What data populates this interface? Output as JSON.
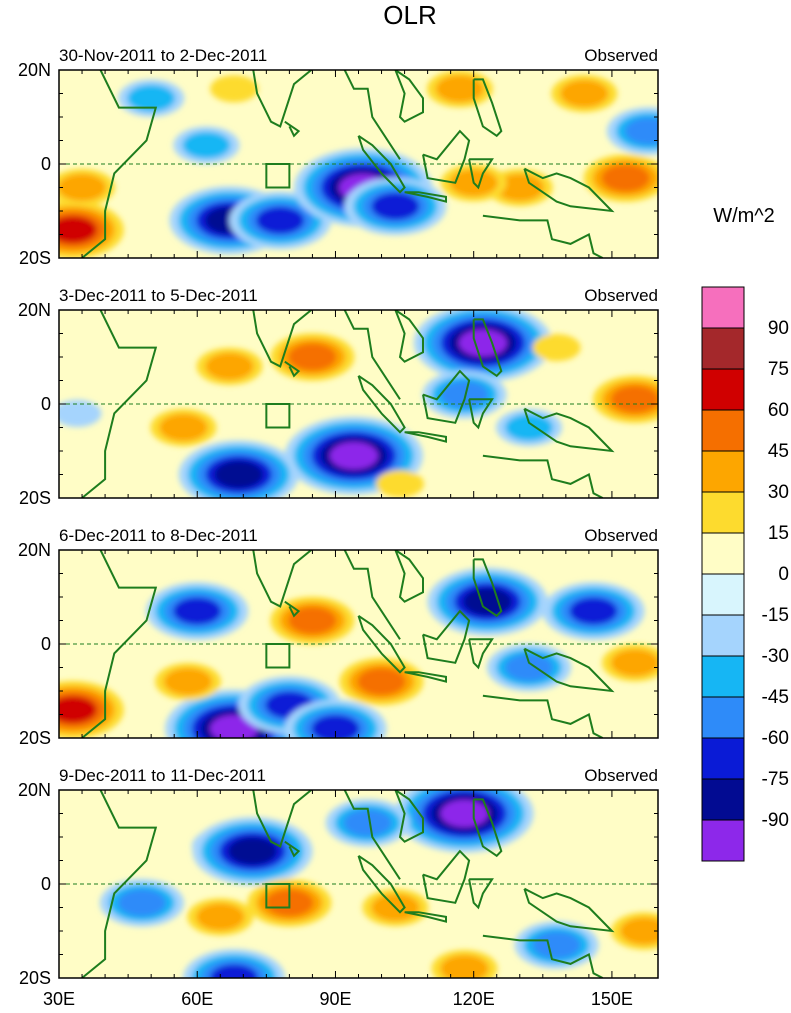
{
  "title": "OLR",
  "chart_data": {
    "type": "heatmap",
    "title": "OLR",
    "units": "W/m^2",
    "x_ticks": [
      "30E",
      "60E",
      "90E",
      "120E",
      "150E"
    ],
    "x_tick_values": [
      30,
      60,
      90,
      120,
      150
    ],
    "xlim": [
      30,
      160
    ],
    "ylim": [
      -20,
      20
    ],
    "y_ticks": [
      "20N",
      "0",
      "20S"
    ],
    "y_tick_values": [
      20,
      0,
      -20
    ],
    "colorbar": {
      "labels": [
        "90",
        "75",
        "60",
        "45",
        "30",
        "15",
        "0",
        "-15",
        "-30",
        "-45",
        "-60",
        "-75",
        "-90"
      ],
      "colors": [
        "#f66fbd",
        "#a4282b",
        "#d00000",
        "#f56f00",
        "#fda600",
        "#fddb2e",
        "#fffdc6",
        "#d8f5fd",
        "#a5d4fd",
        "#16b6f4",
        "#2e8bf9",
        "#0a1bd6",
        "#020b92",
        "#8d28ea"
      ]
    },
    "box_region": {
      "lon": [
        75,
        80
      ],
      "lat": [
        -5,
        0
      ]
    },
    "panels": [
      {
        "period": "30-Nov-2011 to 2-Dec-2011",
        "label": "Observed",
        "features": [
          {
            "lon": 67,
            "lat": -12,
            "value": -75
          },
          {
            "lon": 78,
            "lat": -12,
            "value": -60
          },
          {
            "lon": 96,
            "lat": -5,
            "value": -90
          },
          {
            "lon": 103,
            "lat": -9,
            "value": -60
          },
          {
            "lon": 50,
            "lat": 14,
            "value": -30
          },
          {
            "lon": 62,
            "lat": 4,
            "value": -30
          },
          {
            "lon": 158,
            "lat": 7,
            "value": -45
          },
          {
            "lon": 130,
            "lat": -5,
            "value": 30
          },
          {
            "lon": 120,
            "lat": -4,
            "value": 30
          },
          {
            "lon": 153,
            "lat": -3,
            "value": 45
          },
          {
            "lon": 33,
            "lat": -14,
            "value": 60
          },
          {
            "lon": 35,
            "lat": -5,
            "value": 30
          },
          {
            "lon": 144,
            "lat": 15,
            "value": 30
          },
          {
            "lon": 117,
            "lat": 16,
            "value": 30
          },
          {
            "lon": 68,
            "lat": 16,
            "value": 15
          }
        ]
      },
      {
        "period": "3-Dec-2011 to 5-Dec-2011",
        "label": "Observed",
        "features": [
          {
            "lon": 122,
            "lat": 13,
            "value": -90
          },
          {
            "lon": 118,
            "lat": 2,
            "value": -45
          },
          {
            "lon": 132,
            "lat": -5,
            "value": -30
          },
          {
            "lon": 94,
            "lat": -11,
            "value": -90
          },
          {
            "lon": 69,
            "lat": -15,
            "value": -75
          },
          {
            "lon": 85,
            "lat": 10,
            "value": 45
          },
          {
            "lon": 67,
            "lat": 8,
            "value": 30
          },
          {
            "lon": 138,
            "lat": 12,
            "value": 15
          },
          {
            "lon": 155,
            "lat": 1,
            "value": 45
          },
          {
            "lon": 57,
            "lat": -5,
            "value": 30
          },
          {
            "lon": 34,
            "lat": -2,
            "value": -15
          },
          {
            "lon": 104,
            "lat": -17,
            "value": 15
          }
        ]
      },
      {
        "period": "6-Dec-2011 to 8-Dec-2011",
        "label": "Observed",
        "features": [
          {
            "lon": 123,
            "lat": 9,
            "value": -75
          },
          {
            "lon": 146,
            "lat": 7,
            "value": -60
          },
          {
            "lon": 132,
            "lat": -5,
            "value": -45
          },
          {
            "lon": 60,
            "lat": 7,
            "value": -60
          },
          {
            "lon": 68,
            "lat": -18,
            "value": -90
          },
          {
            "lon": 80,
            "lat": -13,
            "value": -60
          },
          {
            "lon": 90,
            "lat": -18,
            "value": -60
          },
          {
            "lon": 85,
            "lat": 5,
            "value": 45
          },
          {
            "lon": 100,
            "lat": -8,
            "value": 45
          },
          {
            "lon": 58,
            "lat": -8,
            "value": 30
          },
          {
            "lon": 33,
            "lat": -14,
            "value": 60
          },
          {
            "lon": 155,
            "lat": -4,
            "value": 30
          }
        ]
      },
      {
        "period": "9-Dec-2011 to 11-Dec-2011",
        "label": "Observed",
        "features": [
          {
            "lon": 118,
            "lat": 15,
            "value": -90
          },
          {
            "lon": 97,
            "lat": 13,
            "value": -45
          },
          {
            "lon": 66,
            "lat": 8,
            "value": -30
          },
          {
            "lon": 72,
            "lat": 7,
            "value": -75
          },
          {
            "lon": 48,
            "lat": -4,
            "value": -45
          },
          {
            "lon": 138,
            "lat": -13,
            "value": -45
          },
          {
            "lon": 80,
            "lat": -4,
            "value": 45
          },
          {
            "lon": 65,
            "lat": -7,
            "value": 30
          },
          {
            "lon": 103,
            "lat": -5,
            "value": 30
          },
          {
            "lon": 157,
            "lat": -10,
            "value": 30
          },
          {
            "lon": 118,
            "lat": -18,
            "value": 30
          },
          {
            "lon": 68,
            "lat": -20,
            "value": -60
          }
        ]
      }
    ]
  }
}
